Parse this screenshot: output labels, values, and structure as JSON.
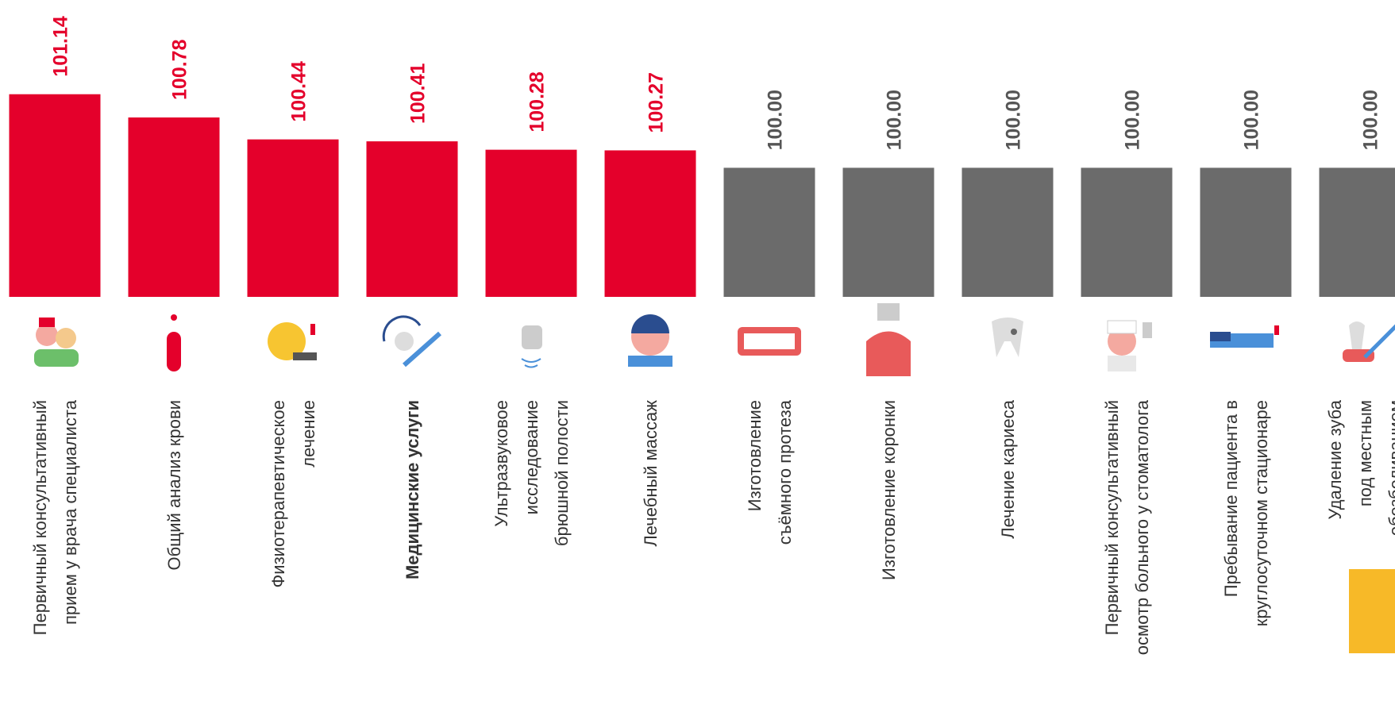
{
  "chart_data": {
    "type": "bar",
    "categories": [
      "Первичный консультативный\nприем у врача специалиста",
      "Общий анализ крови",
      "Физиотерапевтическое\nлечение",
      "Медицинские услуги",
      "Ультразвуковое\nисследование\nбрюшной полости",
      "Лечебный массаж",
      "Изготовление\nсъёмного протеза",
      "Изготовление коронки",
      "Лечение кариеса",
      "Первичный консультативный\nосмотр больного у стоматолога",
      "Пребывание пациента в\nкруглосуточном стационаре",
      "Удаление зуба\nпод местным\nобезболиванием"
    ],
    "values": [
      101.14,
      100.78,
      100.44,
      100.41,
      100.28,
      100.27,
      100.0,
      100.0,
      100.0,
      100.0,
      100.0,
      100.0
    ],
    "value_labels": [
      "101.14",
      "100.78",
      "100.44",
      "100.41",
      "100.28",
      "100.27",
      "100.00",
      "100.00",
      "100.00",
      "100.00",
      "100.00",
      "100.00"
    ],
    "colors": [
      "#e4002b",
      "#e4002b",
      "#e4002b",
      "#e4002b",
      "#e4002b",
      "#e4002b",
      "#6b6b6b",
      "#6b6b6b",
      "#6b6b6b",
      "#6b6b6b",
      "#6b6b6b",
      "#6b6b6b"
    ],
    "bold_category": "Медицинские услуги",
    "ylim": [
      98,
      102.6
    ]
  }
}
